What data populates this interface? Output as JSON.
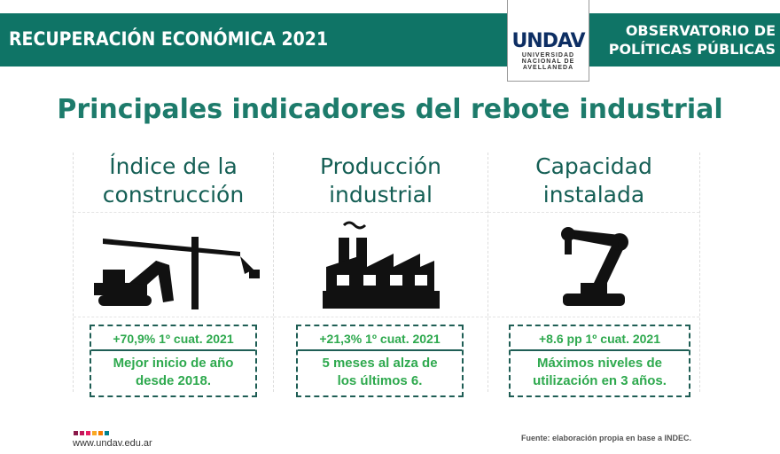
{
  "header": {
    "title": "RECUPERACIÓN ECONÓMICA 2021",
    "logo_mark": "UNDAV",
    "logo_sub": [
      "UNIVERSIDAD",
      "NACIONAL DE",
      "AVELLANEDA"
    ],
    "observatory": [
      "OBSERVATORIO DE",
      "POLÍTICAS PÚBLICAS"
    ]
  },
  "main_title": "Principales indicadores del rebote industrial",
  "columns": [
    {
      "heading": [
        "Índice de la",
        "construcción"
      ],
      "icon": "crane-excavator-icon",
      "stat": "+70,9% 1º cuat. 2021",
      "note": [
        "Mejor inicio de año",
        "desde 2018."
      ]
    },
    {
      "heading": [
        "Producción",
        "industrial"
      ],
      "icon": "factory-icon",
      "stat": "+21,3% 1º cuat. 2021",
      "note": [
        "5 meses al alza de",
        "los últimos 6."
      ]
    },
    {
      "heading": [
        "Capacidad",
        "instalada"
      ],
      "icon": "robot-arm-icon",
      "stat": "+8.6 pp 1º cuat. 2021",
      "note": [
        "Máximos niveles de",
        "utilización en 3 años."
      ]
    }
  ],
  "footer": {
    "url": "www.undav.edu.ar",
    "source": "Fuente: elaboración propia en base a INDEC.",
    "dot_colors": [
      "#8b1a4a",
      "#c2185b",
      "#e91e63",
      "#f9a825",
      "#f57c00",
      "#00838f"
    ]
  },
  "colors": {
    "band": "#0f7466",
    "title": "#1d7b6b",
    "stat": "#2ea94e"
  }
}
